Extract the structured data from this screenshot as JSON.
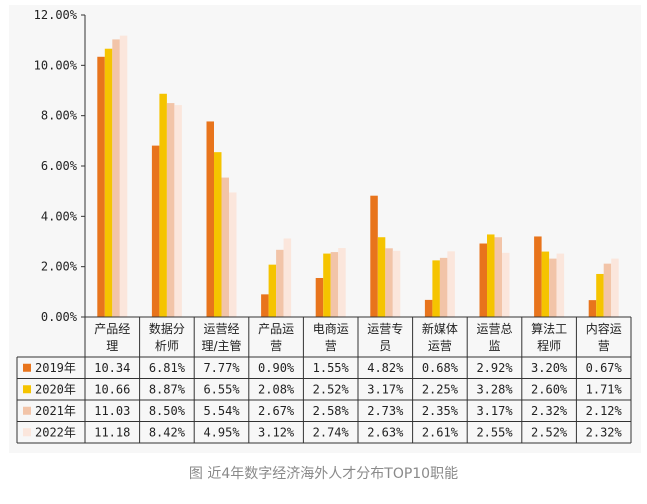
{
  "caption": "图 近4年数字经济海外人才分布TOP10职能",
  "chart_data": {
    "type": "bar",
    "title": "",
    "xlabel": "",
    "ylabel": "",
    "ylim": [
      0,
      12
    ],
    "y_tick_labels": [
      "0.00%",
      "2.00%",
      "4.00%",
      "6.00%",
      "8.00%",
      "10.00%",
      "12.00%"
    ],
    "categories": [
      "产品经理",
      "数据分析师",
      "运营经理/主管",
      "产品运营",
      "电商运营",
      "运营专员",
      "新媒体运营",
      "运营总监",
      "算法工程师",
      "内容运营"
    ],
    "category_lines": [
      [
        "产品经",
        "理"
      ],
      [
        "数据分",
        "析师"
      ],
      [
        "运营经",
        "理/主管"
      ],
      [
        "产品运",
        "营"
      ],
      [
        "电商运",
        "营"
      ],
      [
        "运营专",
        "员"
      ],
      [
        "新媒体",
        "运营"
      ],
      [
        "运营总",
        "监"
      ],
      [
        "算法工",
        "程师"
      ],
      [
        "内容运",
        "营"
      ]
    ],
    "series": [
      {
        "name": "2019年",
        "color": "#e8741c",
        "values": [
          10.34,
          6.81,
          7.77,
          0.9,
          1.55,
          4.82,
          0.68,
          2.92,
          3.2,
          0.67
        ],
        "labels": [
          "10.34",
          "6.81%",
          "7.77%",
          "0.90%",
          "1.55%",
          "4.82%",
          "0.68%",
          "2.92%",
          "3.20%",
          "0.67%"
        ]
      },
      {
        "name": "2020年",
        "color": "#f5c400",
        "values": [
          10.66,
          8.87,
          6.55,
          2.08,
          2.52,
          3.17,
          2.25,
          3.28,
          2.6,
          1.71
        ],
        "labels": [
          "10.66",
          "8.87%",
          "6.55%",
          "2.08%",
          "2.52%",
          "3.17%",
          "2.25%",
          "3.28%",
          "2.60%",
          "1.71%"
        ]
      },
      {
        "name": "2021年",
        "color": "#f2c4a8",
        "values": [
          11.03,
          8.5,
          5.54,
          2.67,
          2.58,
          2.73,
          2.35,
          3.17,
          2.32,
          2.12
        ],
        "labels": [
          "11.03",
          "8.50%",
          "5.54%",
          "2.67%",
          "2.58%",
          "2.73%",
          "2.35%",
          "3.17%",
          "2.32%",
          "2.12%"
        ]
      },
      {
        "name": "2022年",
        "color": "#fbe6dc",
        "values": [
          11.18,
          8.42,
          4.95,
          3.12,
          2.74,
          2.63,
          2.61,
          2.55,
          2.52,
          2.32
        ],
        "labels": [
          "11.18",
          "8.42%",
          "4.95%",
          "3.12%",
          "2.74%",
          "2.63%",
          "2.61%",
          "2.55%",
          "2.52%",
          "2.32%"
        ]
      }
    ]
  }
}
